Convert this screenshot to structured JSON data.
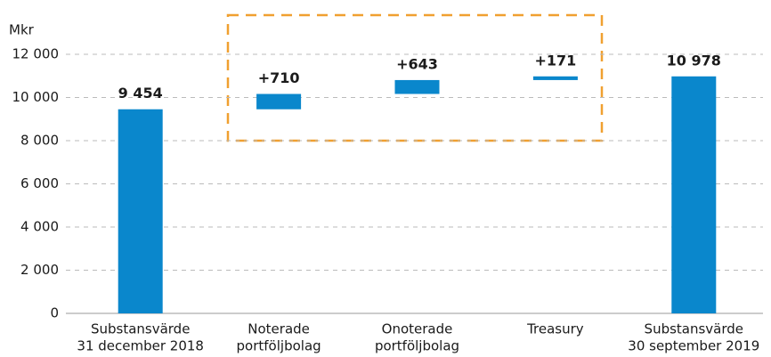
{
  "chart_data": {
    "type": "waterfall",
    "y_label": "Mkr",
    "categories": [
      [
        "Substansvärde",
        "31 december 2018"
      ],
      [
        "Noterade",
        "portföljbolag"
      ],
      [
        "Onoterade",
        "portföljbolag"
      ],
      [
        "Treasury"
      ],
      [
        "Substansvärde",
        "30 september 2019"
      ]
    ],
    "values": [
      9454,
      710,
      643,
      171,
      10978
    ],
    "value_labels": [
      "9 454",
      "+710",
      "+643",
      "+171",
      "10 978"
    ],
    "totals": [
      true,
      false,
      false,
      false,
      true
    ],
    "color": "#0a87cc",
    "ylim": [
      0,
      12000
    ],
    "yticks": [
      0,
      {
        "value": 2000,
        "label": "2 000"
      },
      {
        "value": 4000,
        "label": "4 000"
      },
      {
        "value": 6000,
        "label": "6 000"
      },
      {
        "value": 8000,
        "label": "8 000"
      },
      {
        "value": 10000,
        "label": "10 000"
      },
      {
        "value": 12000,
        "label": "12 000"
      }
    ],
    "grid": true
  }
}
